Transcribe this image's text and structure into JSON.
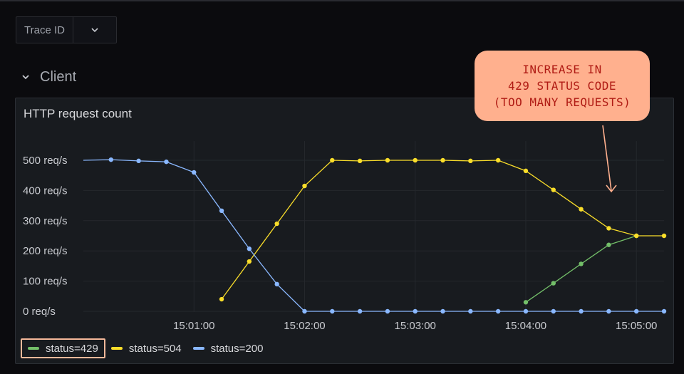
{
  "variable": {
    "label": "Trace ID",
    "icon": "chevron-down-icon"
  },
  "row": {
    "title": "Client",
    "icon": "chevron-down-icon"
  },
  "panel": {
    "title": "HTTP request count"
  },
  "callout": {
    "lines": [
      "INCREASE IN",
      "429 STATUS CODE",
      "(TOO MANY REQUESTS)"
    ],
    "color": "#ffb08e",
    "text_color": "#b01b14"
  },
  "colors": {
    "background": "#0b0b0e",
    "panel": "#181b1f",
    "grid": "#25282d",
    "highlight": "#f5b99a"
  },
  "chart_data": {
    "type": "line",
    "title": "HTTP request count",
    "xlabel": "",
    "ylabel": "",
    "xlim": [
      "15:00:00",
      "15:05:15"
    ],
    "ylim": [
      0,
      550
    ],
    "y_ticks": [
      0,
      100,
      200,
      300,
      400,
      500
    ],
    "y_tick_labels": [
      "0 req/s",
      "100 req/s",
      "200 req/s",
      "300 req/s",
      "400 req/s",
      "500 req/s"
    ],
    "x_ticks": [
      "15:01:00",
      "15:02:00",
      "15:03:00",
      "15:04:00",
      "15:05:00"
    ],
    "grid": true,
    "legend_position": "bottom-left",
    "series": [
      {
        "name": "status=429",
        "color": "#73bf69",
        "x": [
          "15:04:00",
          "15:04:15",
          "15:04:30",
          "15:04:45",
          "15:05:00"
        ],
        "y": [
          30,
          93,
          157,
          220,
          250
        ],
        "line_start": null
      },
      {
        "name": "status=504",
        "color": "#fade2a",
        "x": [
          "15:01:15",
          "15:01:30",
          "15:01:45",
          "15:02:00",
          "15:02:15",
          "15:02:30",
          "15:02:45",
          "15:03:00",
          "15:03:15",
          "15:03:30",
          "15:03:45",
          "15:04:00",
          "15:04:15",
          "15:04:30",
          "15:04:45",
          "15:05:00",
          "15:05:15"
        ],
        "y": [
          40,
          165,
          290,
          415,
          500,
          498,
          500,
          500,
          500,
          498,
          500,
          465,
          402,
          338,
          275,
          250,
          250
        ],
        "line_start": null
      },
      {
        "name": "status=200",
        "color": "#8ab8ff",
        "x": [
          "15:00:15",
          "15:00:30",
          "15:00:45",
          "15:01:00",
          "15:01:15",
          "15:01:30",
          "15:01:45",
          "15:02:00",
          "15:02:15",
          "15:02:30",
          "15:02:45",
          "15:03:00",
          "15:03:15",
          "15:03:30",
          "15:03:45",
          "15:04:00",
          "15:04:15",
          "15:04:30",
          "15:04:45",
          "15:05:00",
          "15:05:15"
        ],
        "y": [
          502,
          498,
          495,
          460,
          333,
          207,
          90,
          0,
          0,
          0,
          0,
          0,
          0,
          0,
          0,
          0,
          0,
          0,
          0,
          0,
          0
        ],
        "line_start": {
          "x": "15:00:00",
          "y": 500
        }
      }
    ]
  }
}
